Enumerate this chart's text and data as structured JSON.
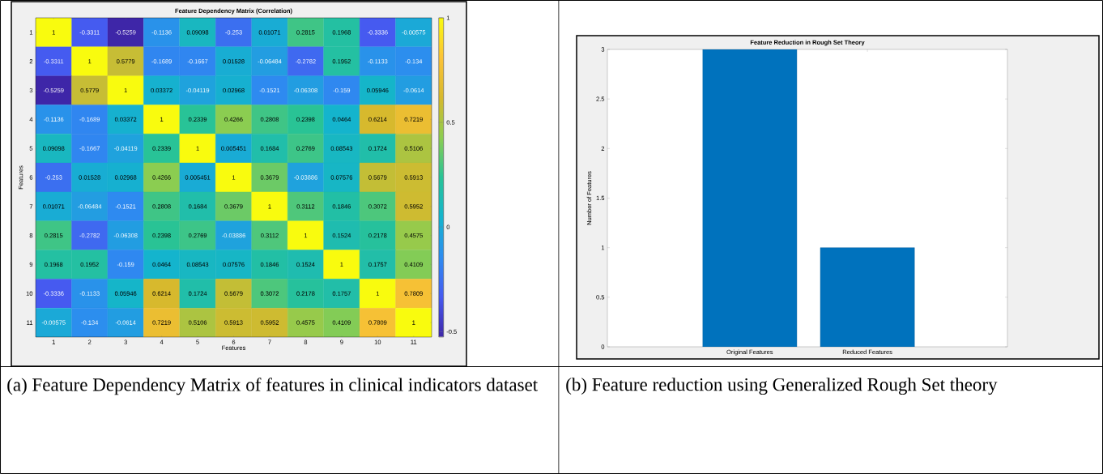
{
  "chart_data": [
    {
      "type": "heatmap",
      "title": "Feature Dependency Matrix (Correlation)",
      "xlabel": "Features",
      "ylabel": "Features",
      "categories": [
        "1",
        "2",
        "3",
        "4",
        "5",
        "6",
        "7",
        "8",
        "9",
        "10",
        "11"
      ],
      "y_categories": [
        "1",
        "2",
        "3",
        "4",
        "5",
        "6",
        "7",
        "8",
        "9",
        "10",
        "11"
      ],
      "cells": [
        [
          1,
          -0.3311,
          -0.5259,
          -0.1136,
          0.09098,
          -0.253,
          0.01071,
          0.2815,
          0.1968,
          -0.3336,
          -0.00575
        ],
        [
          -0.3311,
          1,
          0.5779,
          -0.1689,
          -0.1667,
          0.01528,
          -0.06484,
          -0.2782,
          0.1952,
          -0.1133,
          -0.134
        ],
        [
          -0.5259,
          0.5779,
          1,
          0.03372,
          -0.04119,
          0.02968,
          -0.1521,
          -0.06308,
          -0.159,
          0.05946,
          -0.0614
        ],
        [
          -0.1136,
          -0.1689,
          0.03372,
          1,
          0.2339,
          0.4266,
          0.2808,
          0.2398,
          0.0464,
          0.6214,
          0.7219
        ],
        [
          0.09098,
          -0.1667,
          -0.04119,
          0.2339,
          1,
          0.005451,
          0.1684,
          0.2769,
          0.08543,
          0.1724,
          0.5106
        ],
        [
          -0.253,
          0.01528,
          0.02968,
          0.4266,
          0.005451,
          1,
          0.3679,
          -0.03886,
          0.07576,
          0.5679,
          0.5913
        ],
        [
          0.01071,
          -0.06484,
          -0.1521,
          0.2808,
          0.1684,
          0.3679,
          1,
          0.3112,
          0.1846,
          0.3072,
          0.5952
        ],
        [
          0.2815,
          -0.2782,
          -0.06308,
          0.2398,
          0.2769,
          -0.03886,
          0.3112,
          1,
          0.1524,
          0.2178,
          0.4575
        ],
        [
          0.1968,
          0.1952,
          -0.159,
          0.0464,
          0.08543,
          0.07576,
          0.1846,
          0.1524,
          1,
          0.1757,
          0.4109
        ],
        [
          -0.3336,
          -0.1133,
          0.05946,
          0.6214,
          0.1724,
          0.5679,
          0.3072,
          0.2178,
          0.1757,
          1,
          0.7809
        ],
        [
          -0.00575,
          -0.134,
          -0.0614,
          0.7219,
          0.5106,
          0.5913,
          0.5952,
          0.4575,
          0.4109,
          0.7809,
          1
        ]
      ],
      "clim": [
        -0.5259,
        1
      ],
      "cticks": [
        -0.5,
        0,
        0.5,
        1
      ],
      "data_labels": true,
      "annotations": [
        "(a) Feature Dependency Matrix of features in clinical indicators dataset"
      ]
    },
    {
      "type": "bar",
      "title": "Feature Reduction in Rough Set Theory",
      "ylabel": "Number of Features",
      "categories": [
        "Original Features",
        "Reduced Features"
      ],
      "values": [
        3,
        1
      ],
      "color": "#0072bd",
      "ylim": [
        0,
        3
      ],
      "yticks": [
        0,
        0.5,
        1,
        1.5,
        2,
        2.5,
        3
      ],
      "annotations": [
        "(b) Feature reduction using Generalized Rough Set theory"
      ]
    }
  ]
}
